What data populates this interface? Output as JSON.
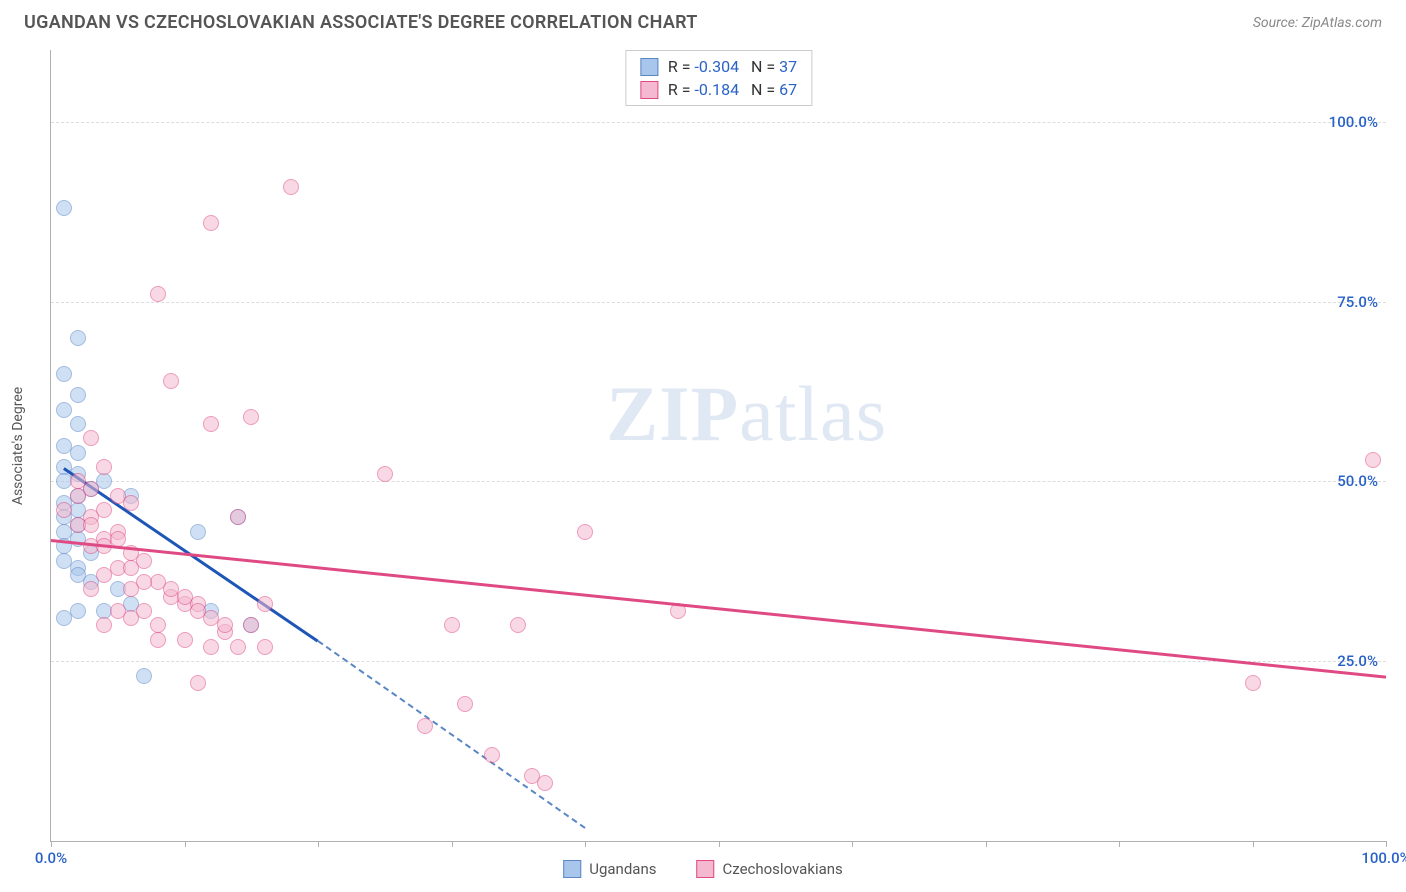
{
  "header": {
    "title": "UGANDAN VS CZECHOSLOVAKIAN ASSOCIATE'S DEGREE CORRELATION CHART",
    "source_prefix": "Source: ",
    "source_name": "ZipAtlas.com"
  },
  "watermark": {
    "part1": "ZIP",
    "part2": "atlas"
  },
  "chart": {
    "type": "scatter",
    "ylabel": "Associate's Degree",
    "background_color": "#ffffff",
    "grid_color": "#dddddd",
    "axis_color": "#b0b0b0",
    "xlim": [
      0,
      100
    ],
    "ylim": [
      0,
      110
    ],
    "xticks": [
      0,
      10,
      20,
      30,
      40,
      50,
      60,
      70,
      80,
      90,
      100
    ],
    "xtick_labels": {
      "0": "0.0%",
      "100": "100.0%"
    },
    "xtick_label_color": "#2962c7",
    "yticks": [
      25,
      50,
      75,
      100
    ],
    "ytick_labels": {
      "25": "25.0%",
      "50": "50.0%",
      "75": "75.0%",
      "100": "100.0%"
    },
    "ytick_label_color": "#2962c7",
    "series": [
      {
        "name": "Ugandans",
        "label": "Ugandans",
        "color_fill": "#a8c5ec",
        "color_stroke": "#5a87c4",
        "marker_size": 16,
        "R": "-0.304",
        "N": "37",
        "trend": {
          "x1": 1,
          "y1": 52,
          "x2": 20,
          "y2": 28,
          "color": "#1e56b8",
          "width": 2.5
        },
        "trend_ext": {
          "x1": 20,
          "y1": 28,
          "x2": 40,
          "y2": 2,
          "color": "#5a87c4",
          "dash": true
        },
        "points": [
          [
            1,
            88
          ],
          [
            2,
            70
          ],
          [
            1,
            65
          ],
          [
            2,
            62
          ],
          [
            1,
            60
          ],
          [
            2,
            58
          ],
          [
            1,
            55
          ],
          [
            2,
            54
          ],
          [
            1,
            52
          ],
          [
            2,
            51
          ],
          [
            1,
            50
          ],
          [
            3,
            49
          ],
          [
            2,
            48
          ],
          [
            1,
            47
          ],
          [
            6,
            48
          ],
          [
            2,
            46
          ],
          [
            1,
            45
          ],
          [
            2,
            44
          ],
          [
            1,
            43
          ],
          [
            2,
            42
          ],
          [
            1,
            41
          ],
          [
            3,
            40
          ],
          [
            1,
            39
          ],
          [
            2,
            38
          ],
          [
            5,
            35
          ],
          [
            6,
            33
          ],
          [
            4,
            32
          ],
          [
            2,
            32
          ],
          [
            1,
            31
          ],
          [
            7,
            23
          ],
          [
            14,
            45
          ],
          [
            11,
            43
          ],
          [
            12,
            32
          ],
          [
            15,
            30
          ],
          [
            4,
            50
          ],
          [
            3,
            36
          ],
          [
            2,
            37
          ]
        ]
      },
      {
        "name": "Czechoslovakians",
        "label": "Czechoslovakians",
        "color_fill": "#f4b9ce",
        "color_stroke": "#e04a84",
        "marker_size": 16,
        "R": "-0.184",
        "N": "67",
        "trend": {
          "x1": 0,
          "y1": 42,
          "x2": 100,
          "y2": 23,
          "color": "#e04a84",
          "width": 2.5
        },
        "points": [
          [
            18,
            91
          ],
          [
            12,
            86
          ],
          [
            8,
            76
          ],
          [
            9,
            64
          ],
          [
            12,
            58
          ],
          [
            15,
            59
          ],
          [
            3,
            56
          ],
          [
            4,
            52
          ],
          [
            2,
            50
          ],
          [
            3,
            49
          ],
          [
            5,
            48
          ],
          [
            6,
            47
          ],
          [
            4,
            46
          ],
          [
            3,
            45
          ],
          [
            2,
            44
          ],
          [
            5,
            43
          ],
          [
            4,
            42
          ],
          [
            3,
            41
          ],
          [
            6,
            40
          ],
          [
            7,
            39
          ],
          [
            5,
            38
          ],
          [
            4,
            37
          ],
          [
            8,
            36
          ],
          [
            6,
            35
          ],
          [
            9,
            34
          ],
          [
            10,
            33
          ],
          [
            7,
            32
          ],
          [
            11,
            33
          ],
          [
            12,
            31
          ],
          [
            8,
            30
          ],
          [
            13,
            29
          ],
          [
            14,
            45
          ],
          [
            16,
            33
          ],
          [
            15,
            30
          ],
          [
            10,
            28
          ],
          [
            12,
            27
          ],
          [
            14,
            27
          ],
          [
            16,
            27
          ],
          [
            11,
            22
          ],
          [
            25,
            51
          ],
          [
            40,
            43
          ],
          [
            47,
            32
          ],
          [
            35,
            30
          ],
          [
            30,
            30
          ],
          [
            31,
            19
          ],
          [
            33,
            12
          ],
          [
            36,
            9
          ],
          [
            37,
            8
          ],
          [
            28,
            16
          ],
          [
            99,
            53
          ],
          [
            90,
            22
          ],
          [
            3,
            35
          ],
          [
            5,
            32
          ],
          [
            6,
            31
          ],
          [
            4,
            30
          ],
          [
            8,
            28
          ],
          [
            2,
            48
          ],
          [
            1,
            46
          ],
          [
            3,
            44
          ],
          [
            5,
            42
          ],
          [
            4,
            41
          ],
          [
            6,
            38
          ],
          [
            7,
            36
          ],
          [
            9,
            35
          ],
          [
            10,
            34
          ],
          [
            11,
            32
          ],
          [
            13,
            30
          ]
        ]
      }
    ],
    "legend_top": {
      "r_label": "R =",
      "n_label": "N =",
      "text_color": "#333333",
      "value_color": "#2962c7"
    },
    "legend_bottom_text_color": "#555555"
  }
}
